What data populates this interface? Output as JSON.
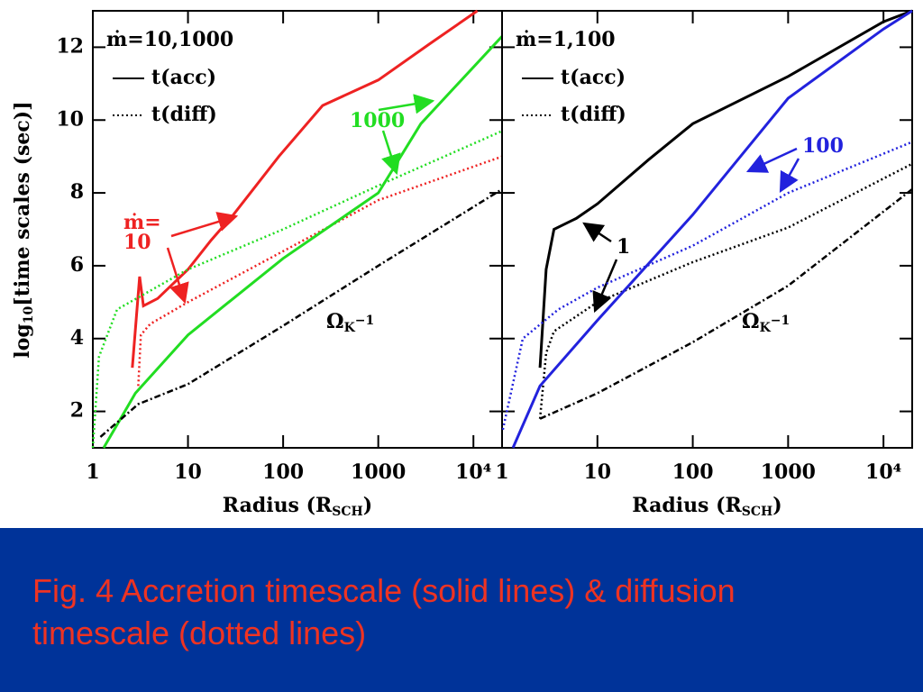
{
  "chart_data": [
    {
      "type": "line",
      "xscale": "log",
      "xlim": [
        1,
        20000
      ],
      "xticks": [
        1,
        10,
        100,
        1000,
        {
          "value": 10000,
          "label": "10⁴"
        }
      ],
      "ylim": [
        1,
        13
      ],
      "yticks": [
        2,
        4,
        6,
        8,
        10,
        12
      ],
      "ylabel": {
        "before": "log",
        "sub": "10",
        "text": "[time scales (sec)]"
      },
      "xlabel": {
        "text": "Radius (R",
        "sub": "SCH",
        "after": ")"
      },
      "heading": "ṁ=10,1000",
      "legend": [
        {
          "label": "t(acc)",
          "style": "solid"
        },
        {
          "label": "t(diff)",
          "style": "dotted"
        }
      ],
      "annotations": [
        {
          "lines": [
            "ṁ=",
            "10"
          ],
          "color": "#ee2222"
        },
        {
          "lines": [
            "1000"
          ],
          "color": "#22dd22"
        },
        {
          "text": "Ω",
          "sub": "K",
          "sup": "−1",
          "color": "#000000"
        }
      ],
      "series": [
        {
          "color": "#ee2222",
          "style": "solid",
          "x": [
            2.6,
            3.1,
            3.4,
            4.8,
            10,
            17.5,
            30,
            90,
            260,
            1000,
            3500,
            11000
          ],
          "values": [
            3.2,
            5.7,
            4.9,
            5.1,
            5.9,
            6.7,
            7.4,
            9.0,
            10.4,
            11.1,
            12.1,
            13
          ]
        },
        {
          "color": "#ee2222",
          "style": "dotted",
          "x": [
            3,
            3.2,
            4,
            10,
            100,
            1000,
            20000
          ],
          "values": [
            2.7,
            4.1,
            4.4,
            5.0,
            6.4,
            7.8,
            9.0
          ]
        },
        {
          "color": "#22dd22",
          "style": "solid",
          "x": [
            1.3,
            2.8,
            10,
            100,
            1000,
            2800,
            20000
          ],
          "values": [
            1,
            2.5,
            4.1,
            6.2,
            8.0,
            9.9,
            12.3
          ]
        },
        {
          "color": "#22dd22",
          "style": "dotted",
          "x": [
            1,
            1.16,
            1.8,
            10,
            100,
            1000,
            20000
          ],
          "values": [
            1,
            3.5,
            4.8,
            5.9,
            7.0,
            8.2,
            9.7
          ]
        },
        {
          "color": "#000000",
          "style": "dashdot",
          "x": [
            1.2,
            3,
            10,
            100,
            1000,
            20000
          ],
          "values": [
            1.3,
            2.2,
            2.75,
            4.35,
            6.0,
            8.1
          ]
        }
      ]
    },
    {
      "type": "line",
      "xscale": "log",
      "xlim": [
        1,
        20000
      ],
      "xticks": [
        1,
        10,
        100,
        1000,
        {
          "value": 10000,
          "label": "10⁴"
        }
      ],
      "ylim": [
        1,
        13
      ],
      "yticks": [
        2,
        4,
        6,
        8,
        10,
        12
      ],
      "xlabel": {
        "text": "Radius (R",
        "sub": "SCH",
        "after": ")"
      },
      "heading": "ṁ=1,100",
      "legend": [
        {
          "label": "t(acc)",
          "style": "solid"
        },
        {
          "label": "t(diff)",
          "style": "dotted"
        }
      ],
      "annotations": [
        {
          "lines": [
            "100"
          ],
          "color": "#2222dd"
        },
        {
          "lines": [
            "1"
          ],
          "color": "#000000"
        },
        {
          "text": "Ω",
          "sub": "K",
          "sup": "−1",
          "color": "#000000"
        }
      ],
      "series": [
        {
          "color": "#000000",
          "style": "solid",
          "x": [
            2.5,
            2.9,
            3.5,
            6,
            10,
            34,
            100,
            1000,
            10000,
            20000
          ],
          "values": [
            3.2,
            5.9,
            7.0,
            7.3,
            7.7,
            8.9,
            9.9,
            11.2,
            12.7,
            13
          ]
        },
        {
          "color": "#000000",
          "style": "dotted",
          "x": [
            2.5,
            2.9,
            3.5,
            10,
            100,
            1000,
            20000
          ],
          "values": [
            1.8,
            3.6,
            4.2,
            5.0,
            6.1,
            7.05,
            8.8
          ]
        },
        {
          "color": "#2222dd",
          "style": "solid",
          "x": [
            1.3,
            2.5,
            10,
            100,
            1000,
            10000,
            20000
          ],
          "values": [
            1,
            2.7,
            4.5,
            7.4,
            10.6,
            12.5,
            13
          ]
        },
        {
          "color": "#2222dd",
          "style": "dotted",
          "x": [
            1.02,
            1.65,
            3.9,
            10,
            100,
            1000,
            20000
          ],
          "values": [
            1.5,
            4.0,
            4.8,
            5.4,
            6.55,
            8.0,
            9.4
          ]
        },
        {
          "color": "#000000",
          "style": "dashdot",
          "x": [
            2.5,
            10,
            100,
            1000,
            20000
          ],
          "values": [
            1.8,
            2.5,
            3.9,
            5.45,
            8.1
          ]
        }
      ]
    }
  ],
  "caption": "Fig. 4 Accretion timescale (solid lines) & diffusion timescale (dotted lines)"
}
